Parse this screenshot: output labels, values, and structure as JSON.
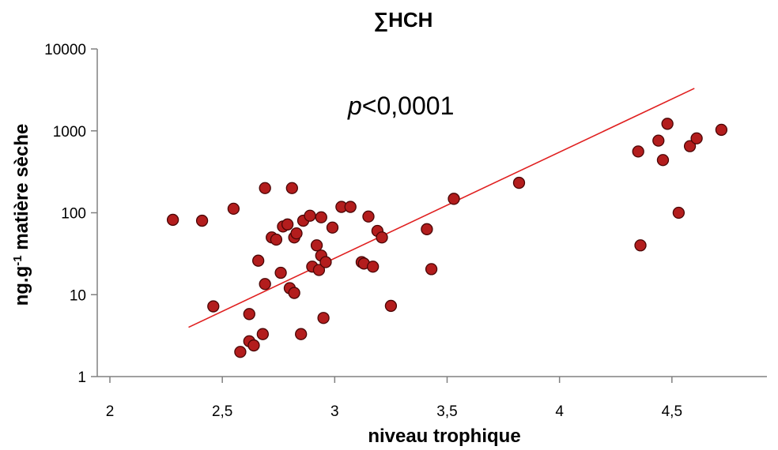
{
  "chart_data": {
    "type": "scatter",
    "title": "∑HCH",
    "xlabel": "niveau trophique",
    "ylabel": {
      "prefix": "ng.g",
      "superscript": "-1",
      "suffix": " matière sèche"
    },
    "annotation": {
      "italic": "p",
      "rest": "<0,0001"
    },
    "xlim": [
      2,
      5
    ],
    "ylim": [
      1,
      10000
    ],
    "y_scale": "log",
    "x_ticks": [
      {
        "value": 2,
        "label": "2"
      },
      {
        "value": 2.5,
        "label": "2,5"
      },
      {
        "value": 3,
        "label": "3"
      },
      {
        "value": 3.5,
        "label": "3,5"
      },
      {
        "value": 4,
        "label": "4"
      },
      {
        "value": 4.5,
        "label": "4,5"
      }
    ],
    "y_ticks": [
      {
        "value": 1,
        "label": "1"
      },
      {
        "value": 10,
        "label": "10"
      },
      {
        "value": 100,
        "label": "100"
      },
      {
        "value": 1000,
        "label": "1000"
      },
      {
        "value": 10000,
        "label": "10000"
      }
    ],
    "grid": false,
    "marker_color": "#b31d1d",
    "marker_edge_color": "#4a0606",
    "trend_color": "#e02020",
    "trend_line": {
      "x": [
        2.35,
        4.6
      ],
      "y": [
        4,
        3300
      ]
    },
    "points": [
      {
        "x": 2.28,
        "y": 82
      },
      {
        "x": 2.41,
        "y": 80
      },
      {
        "x": 2.46,
        "y": 7.2
      },
      {
        "x": 2.55,
        "y": 112
      },
      {
        "x": 2.58,
        "y": 2.0
      },
      {
        "x": 2.62,
        "y": 5.8
      },
      {
        "x": 2.62,
        "y": 2.7
      },
      {
        "x": 2.64,
        "y": 2.4
      },
      {
        "x": 2.66,
        "y": 26
      },
      {
        "x": 2.68,
        "y": 3.3
      },
      {
        "x": 2.69,
        "y": 13.5
      },
      {
        "x": 2.69,
        "y": 200
      },
      {
        "x": 2.72,
        "y": 50
      },
      {
        "x": 2.74,
        "y": 47
      },
      {
        "x": 2.76,
        "y": 18.5
      },
      {
        "x": 2.77,
        "y": 68
      },
      {
        "x": 2.79,
        "y": 72
      },
      {
        "x": 2.8,
        "y": 12
      },
      {
        "x": 2.81,
        "y": 200
      },
      {
        "x": 2.82,
        "y": 10.5
      },
      {
        "x": 2.82,
        "y": 50
      },
      {
        "x": 2.83,
        "y": 56
      },
      {
        "x": 2.85,
        "y": 3.3
      },
      {
        "x": 2.86,
        "y": 80
      },
      {
        "x": 2.89,
        "y": 92
      },
      {
        "x": 2.9,
        "y": 22
      },
      {
        "x": 2.92,
        "y": 40
      },
      {
        "x": 2.93,
        "y": 20
      },
      {
        "x": 2.94,
        "y": 30
      },
      {
        "x": 2.94,
        "y": 88
      },
      {
        "x": 2.95,
        "y": 5.2
      },
      {
        "x": 2.96,
        "y": 25
      },
      {
        "x": 2.99,
        "y": 66
      },
      {
        "x": 3.03,
        "y": 118
      },
      {
        "x": 3.07,
        "y": 118
      },
      {
        "x": 3.12,
        "y": 25
      },
      {
        "x": 3.13,
        "y": 24
      },
      {
        "x": 3.15,
        "y": 90
      },
      {
        "x": 3.17,
        "y": 22
      },
      {
        "x": 3.19,
        "y": 60
      },
      {
        "x": 3.21,
        "y": 50
      },
      {
        "x": 3.25,
        "y": 7.3
      },
      {
        "x": 3.41,
        "y": 63
      },
      {
        "x": 3.43,
        "y": 20.5
      },
      {
        "x": 3.53,
        "y": 148
      },
      {
        "x": 3.82,
        "y": 232
      },
      {
        "x": 4.35,
        "y": 560
      },
      {
        "x": 4.36,
        "y": 40
      },
      {
        "x": 4.44,
        "y": 760
      },
      {
        "x": 4.46,
        "y": 440
      },
      {
        "x": 4.48,
        "y": 1220
      },
      {
        "x": 4.53,
        "y": 100
      },
      {
        "x": 4.58,
        "y": 650
      },
      {
        "x": 4.61,
        "y": 810
      },
      {
        "x": 4.72,
        "y": 1030
      }
    ]
  }
}
